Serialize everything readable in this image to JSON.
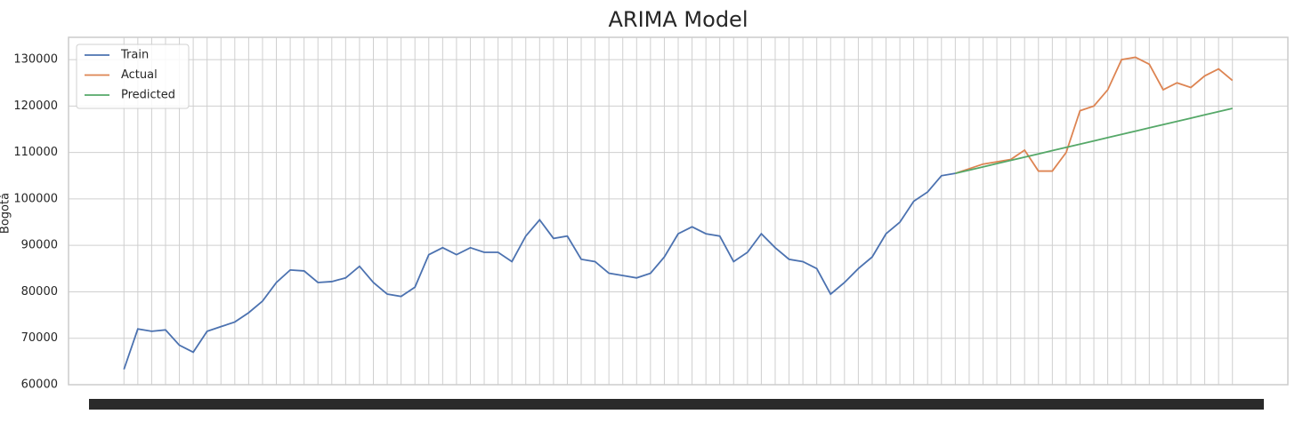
{
  "chart_data": {
    "type": "line",
    "title": "ARIMA Model",
    "y_label": "Bogotá",
    "x": [
      0,
      3,
      6,
      9,
      12,
      15,
      18,
      21,
      24,
      27,
      30,
      33,
      36,
      39,
      42,
      45,
      48,
      51,
      54,
      57,
      60,
      63,
      66,
      69,
      72,
      75,
      78,
      81,
      84,
      87,
      90,
      93,
      96,
      99,
      102,
      105,
      108,
      111,
      114,
      117,
      120,
      123,
      126,
      129,
      132,
      135,
      138,
      141,
      144,
      147,
      150,
      153,
      156,
      159,
      162,
      165,
      168,
      171,
      174,
      177,
      180,
      183,
      186,
      189,
      192,
      195,
      198,
      201,
      204,
      207,
      210,
      213,
      216,
      219,
      222,
      225,
      228,
      231,
      234,
      237,
      240
    ],
    "series": [
      {
        "name": "Train",
        "color": "#4c72b0",
        "values": [
          63300,
          72000,
          71500,
          71800,
          68500,
          67000,
          71500,
          72500,
          73500,
          75500,
          78000,
          82000,
          84700,
          84500,
          82000,
          82200,
          83000,
          85500,
          82000,
          79500,
          79000,
          81000,
          88000,
          89500,
          88000,
          89500,
          88500,
          88500,
          86500,
          92000,
          95500,
          91500,
          92000,
          87000,
          86500,
          84000,
          83500,
          83000,
          84000,
          87500,
          92500,
          94000,
          92500,
          92000,
          86500,
          88500,
          92500,
          89500,
          87000,
          86500,
          85000,
          79500,
          82000,
          85000,
          87500,
          92500,
          95000,
          99500,
          101500,
          105000,
          105500,
          null,
          null,
          null,
          null,
          null,
          null,
          null,
          null,
          null,
          null,
          null,
          null,
          null,
          null,
          null,
          null,
          null,
          null,
          null,
          null
        ]
      },
      {
        "name": "Actual",
        "color": "#dd8452",
        "values": [
          null,
          null,
          null,
          null,
          null,
          null,
          null,
          null,
          null,
          null,
          null,
          null,
          null,
          null,
          null,
          null,
          null,
          null,
          null,
          null,
          null,
          null,
          null,
          null,
          null,
          null,
          null,
          null,
          null,
          null,
          null,
          null,
          null,
          null,
          null,
          null,
          null,
          null,
          null,
          null,
          null,
          null,
          null,
          null,
          null,
          null,
          null,
          null,
          null,
          null,
          null,
          null,
          null,
          null,
          null,
          null,
          null,
          null,
          null,
          null,
          105500,
          106500,
          107500,
          108000,
          108500,
          110500,
          106000,
          106000,
          110000,
          119000,
          120000,
          123500,
          130000,
          130500,
          129000,
          123500,
          125000,
          124000,
          126500,
          128000,
          125500
        ]
      },
      {
        "name": "Predicted",
        "color": "#55a868",
        "values": [
          null,
          null,
          null,
          null,
          null,
          null,
          null,
          null,
          null,
          null,
          null,
          null,
          null,
          null,
          null,
          null,
          null,
          null,
          null,
          null,
          null,
          null,
          null,
          null,
          null,
          null,
          null,
          null,
          null,
          null,
          null,
          null,
          null,
          null,
          null,
          null,
          null,
          null,
          null,
          null,
          null,
          null,
          null,
          null,
          null,
          null,
          null,
          null,
          null,
          null,
          null,
          null,
          null,
          null,
          null,
          null,
          null,
          null,
          null,
          null,
          105500,
          106200,
          106900,
          107600,
          108300,
          109000,
          109700,
          110400,
          111100,
          111800,
          112500,
          113200,
          113900,
          114600,
          115300,
          116000,
          116700,
          117400,
          118100,
          118800,
          119500
        ]
      }
    ],
    "xlim": [
      -12,
      252
    ],
    "ylim": [
      60000,
      134800
    ],
    "yticks": [
      60000,
      70000,
      80000,
      90000,
      100000,
      110000,
      120000,
      130000
    ],
    "grid": true,
    "legend": "upper left"
  }
}
